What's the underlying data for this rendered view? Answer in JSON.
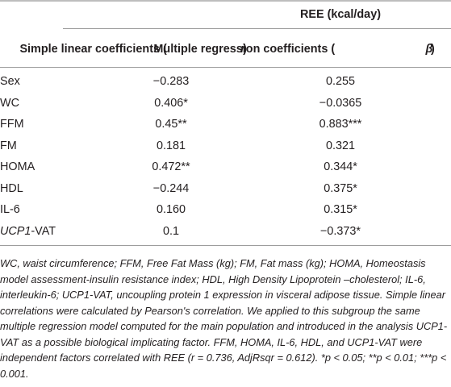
{
  "table": {
    "group_header": "REE (kcal/day)",
    "col_simple": "Simple linear coefficients (",
    "col_simple_var": "r",
    "col_simple_end": ")",
    "col_multi": "Multiple regression coefficients (",
    "col_multi_var": "β",
    "col_multi_end": ")",
    "rows": [
      {
        "label": "Sex",
        "label_italic": "",
        "label_rest": "",
        "simple": "−0.283",
        "multiple": "0.255"
      },
      {
        "label": "WC",
        "label_italic": "",
        "label_rest": "",
        "simple": "0.406*",
        "multiple": "−0.0365"
      },
      {
        "label": "FFM",
        "label_italic": "",
        "label_rest": "",
        "simple": "0.45**",
        "multiple": "0.883***"
      },
      {
        "label": "FM",
        "label_italic": "",
        "label_rest": "",
        "simple": "0.181",
        "multiple": "0.321"
      },
      {
        "label": "HOMA",
        "label_italic": "",
        "label_rest": "",
        "simple": "0.472**",
        "multiple": "0.344*"
      },
      {
        "label": "HDL",
        "label_italic": "",
        "label_rest": "",
        "simple": "−0.244",
        "multiple": "0.375*"
      },
      {
        "label": "IL-6",
        "label_italic": "",
        "label_rest": "",
        "simple": "0.160",
        "multiple": "0.315*"
      },
      {
        "label": "",
        "label_italic": "UCP1",
        "label_rest": "-VAT",
        "simple": "0.1",
        "multiple": "−0.373*"
      }
    ]
  },
  "footnote": "WC, waist circumference; FFM, Free Fat Mass (kg); FM, Fat mass (kg); HOMA, Homeostasis model assessment-insulin resistance index; HDL, High Density Lipoprotein –cholesterol; IL-6, interleukin-6; UCP1-VAT, uncoupling protein 1 expression in visceral adipose tissue. Simple linear correlations were calculated by Pearson's correlation. We applied to this subgroup the same multiple regression model computed for the main population and introduced in the analysis UCP1-VAT as a possible biological implicating factor. FFM, HOMA, IL-6, HDL, and UCP1-VAT were independent factors correlated with REE (r = 0.736, AdjRsqr = 0.612). *p < 0.05; **p < 0.01; ***p < 0.001."
}
